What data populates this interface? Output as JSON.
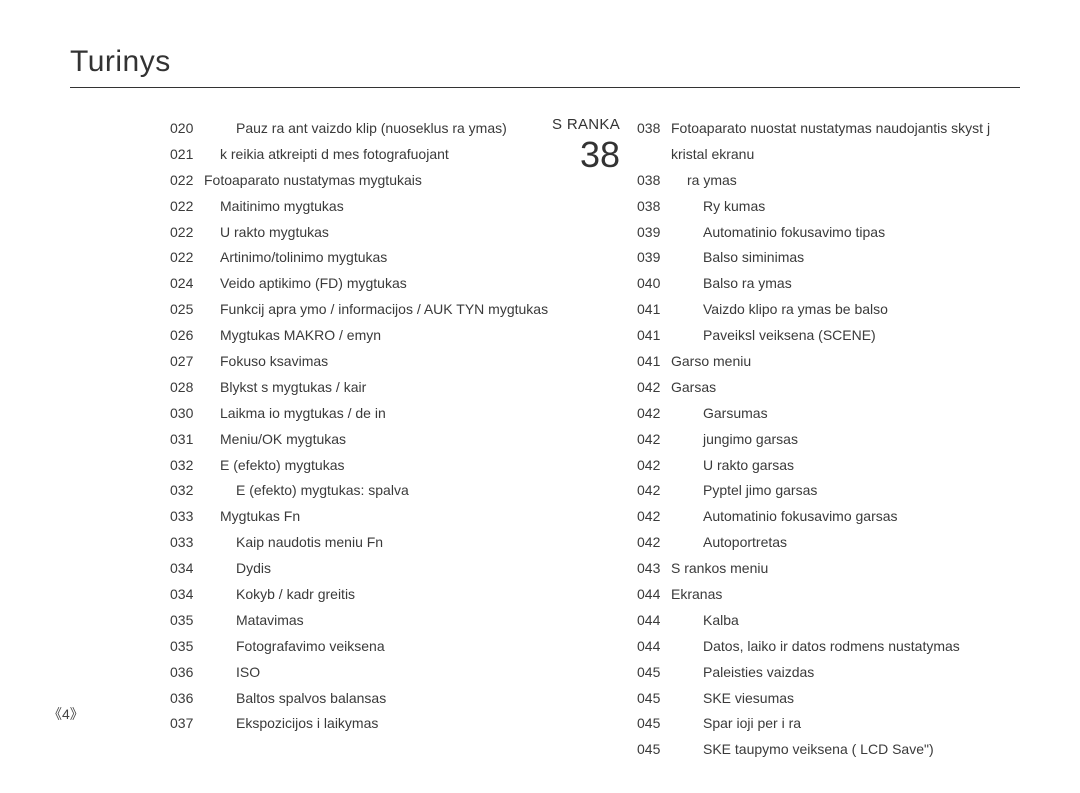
{
  "title": "Turinys",
  "pageNumber": "4",
  "section": {
    "label": "S RANKA",
    "number": "38"
  },
  "colors": {
    "background": "#ffffff",
    "text": "#303030",
    "title": "#333333",
    "titleRule": "#333333"
  },
  "typography": {
    "title_fontsize": 30,
    "body_fontsize": 14,
    "section_num_fontsize": 36,
    "section_label_fontsize": 15,
    "line_height": 1.85,
    "font_family": "Arial"
  },
  "leftColumn": [
    {
      "page": "020",
      "indent": 2,
      "text": "Pauz  ra ant vaizdo klip  (nuoseklus  ra ymas)"
    },
    {
      "page": "021",
      "indent": 1,
      "text": " k  reikia atkreipti d mes  fotografuojant"
    },
    {
      "page": "022",
      "indent": 0,
      "text": "Fotoaparato nustatymas mygtukais"
    },
    {
      "page": "022",
      "indent": 1,
      "text": "Maitinimo mygtukas"
    },
    {
      "page": "022",
      "indent": 1,
      "text": "U rakto mygtukas"
    },
    {
      "page": "022",
      "indent": 1,
      "text": "Artinimo/tolinimo mygtukas"
    },
    {
      "page": "024",
      "indent": 1,
      "text": "Veido aptikimo (FD) mygtukas"
    },
    {
      "page": "025",
      "indent": 1,
      "text": "Funkcij  apra ymo / informacijos / AUK TYN mygtukas"
    },
    {
      "page": "026",
      "indent": 1,
      "text": "Mygtukas MAKRO /  emyn"
    },
    {
      "page": "027",
      "indent": 1,
      "text": "Fokuso  ksavimas"
    },
    {
      "page": "028",
      "indent": 1,
      "text": "Blykst s mygtukas /   kair "
    },
    {
      "page": "030",
      "indent": 1,
      "text": "Laikma io mygtukas /   de in "
    },
    {
      "page": "031",
      "indent": 1,
      "text": "Meniu/OK mygtukas"
    },
    {
      "page": "032",
      "indent": 1,
      "text": "E (efekto) mygtukas"
    },
    {
      "page": "032",
      "indent": 2,
      "text": "E (efekto) mygtukas: spalva"
    },
    {
      "page": "033",
      "indent": 1,
      "text": "Mygtukas Fn"
    },
    {
      "page": "033",
      "indent": 2,
      "text": "Kaip naudotis meniu Fn"
    },
    {
      "page": "034",
      "indent": 2,
      "text": "Dydis"
    },
    {
      "page": "034",
      "indent": 2,
      "text": "Kokyb  / kadr  greitis"
    },
    {
      "page": "035",
      "indent": 2,
      "text": "Matavimas"
    },
    {
      "page": "035",
      "indent": 2,
      "text": "Fotografavimo veiksena"
    },
    {
      "page": "036",
      "indent": 2,
      "text": "ISO"
    },
    {
      "page": "036",
      "indent": 2,
      "text": "Baltos spalvos balansas"
    },
    {
      "page": "037",
      "indent": 2,
      "text": "Ekspozicijos i laikymas"
    }
  ],
  "rightColumn": [
    {
      "page": "038",
      "indent": 0,
      "text": "Fotoaparato nuostat  nustatymas naudojantis skyst j  kristal  ekranu"
    },
    {
      "page": "038",
      "indent": 1,
      "text": " ra ymas"
    },
    {
      "page": "038",
      "indent": 2,
      "text": "Ry kumas"
    },
    {
      "page": "039",
      "indent": 2,
      "text": "Automatinio fokusavimo tipas"
    },
    {
      "page": "039",
      "indent": 2,
      "text": "Balso  siminimas"
    },
    {
      "page": "040",
      "indent": 2,
      "text": "Balso  ra ymas"
    },
    {
      "page": "041",
      "indent": 2,
      "text": "Vaizdo klipo  ra ymas be balso"
    },
    {
      "page": "041",
      "indent": 2,
      "text": "Paveiksl  veiksena (SCENE)"
    },
    {
      "page": "041",
      "indent": 0,
      "text": "Garso meniu"
    },
    {
      "page": "042",
      "indent": 0,
      "text": "Garsas"
    },
    {
      "page": "042",
      "indent": 2,
      "text": "Garsumas"
    },
    {
      "page": "042",
      "indent": 2,
      "text": " jungimo garsas"
    },
    {
      "page": "042",
      "indent": 2,
      "text": "U rakto garsas"
    },
    {
      "page": "042",
      "indent": 2,
      "text": "Pyptel jimo garsas"
    },
    {
      "page": "042",
      "indent": 2,
      "text": "Automatinio fokusavimo garsas"
    },
    {
      "page": "042",
      "indent": 2,
      "text": "Autoportretas"
    },
    {
      "page": "043",
      "indent": 0,
      "text": "S rankos meniu"
    },
    {
      "page": "044",
      "indent": 0,
      "text": "Ekranas"
    },
    {
      "page": "044",
      "indent": 2,
      "text": "Kalba"
    },
    {
      "page": "044",
      "indent": 2,
      "text": "Datos, laiko ir datos rodmens nustatymas"
    },
    {
      "page": "045",
      "indent": 2,
      "text": "Paleisties vaizdas"
    },
    {
      "page": "045",
      "indent": 2,
      "text": "SKE  viesumas"
    },
    {
      "page": "045",
      "indent": 2,
      "text": "Spar ioji per i ra"
    },
    {
      "page": "045",
      "indent": 2,
      "text": "SKE taupymo veiksena ( LCD Save\")"
    }
  ]
}
